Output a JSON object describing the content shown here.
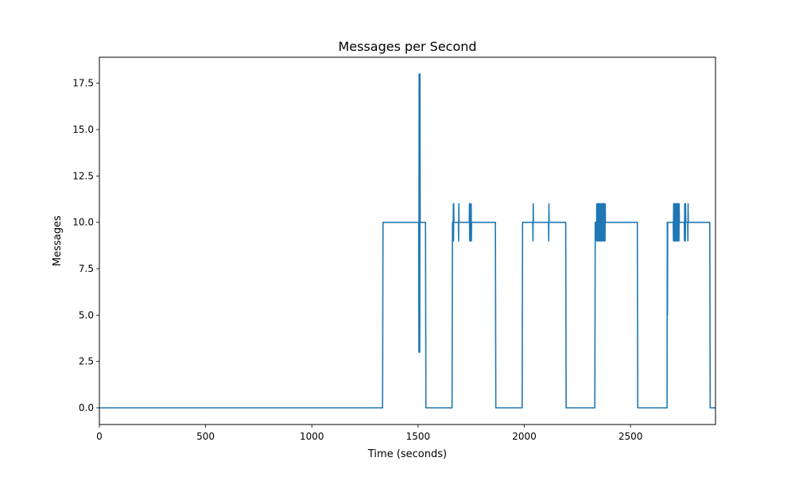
{
  "chart_data": {
    "type": "line",
    "title": "Messages per Second",
    "xlabel": "Time (seconds)",
    "ylabel": "Messages",
    "xlim": [
      0,
      2900
    ],
    "ylim": [
      -0.9,
      18.9
    ],
    "xticks": [
      0,
      500,
      1000,
      1500,
      2000,
      2500
    ],
    "xtick_labels": [
      "0",
      "500",
      "1000",
      "1500",
      "2000",
      "2500"
    ],
    "yticks": [
      0,
      2.5,
      5,
      7.5,
      10,
      12.5,
      15,
      17.5
    ],
    "ytick_labels": [
      "0.0",
      "2.5",
      "5.0",
      "7.5",
      "10.0",
      "12.5",
      "15.0",
      "17.5"
    ],
    "grid": false,
    "legend": "none",
    "series": [
      {
        "color": "#1f77b4",
        "x": [
          0,
          1333,
          1335,
          1503,
          1504,
          1505,
          1506,
          1507,
          1508,
          1509,
          1510,
          1512,
          1535,
          1537,
          1660,
          1662,
          1664,
          1665,
          1666,
          1667,
          1668,
          1669,
          1690,
          1691,
          1692,
          1693,
          1741,
          1742,
          1743,
          1744,
          1745,
          1746,
          1747,
          1748,
          1749,
          1750,
          1751,
          1752,
          1864,
          1866,
          1990,
          1992,
          2040,
          2041,
          2042,
          2043,
          2114,
          2115,
          2116,
          2117,
          2195,
          2197,
          2332,
          2334,
          2339,
          2340,
          2341,
          2342,
          2343,
          2344,
          2345,
          2346,
          2347,
          2348,
          2349,
          2350,
          2351,
          2352,
          2353,
          2354,
          2355,
          2356,
          2357,
          2358,
          2359,
          2360,
          2361,
          2362,
          2363,
          2364,
          2365,
          2366,
          2367,
          2368,
          2369,
          2370,
          2371,
          2372,
          2373,
          2374,
          2375,
          2376,
          2377,
          2378,
          2379,
          2380,
          2381,
          2382,
          2532,
          2534,
          2672,
          2673,
          2674,
          2675,
          2676,
          2678,
          2701,
          2702,
          2703,
          2704,
          2705,
          2706,
          2707,
          2708,
          2709,
          2710,
          2711,
          2712,
          2713,
          2714,
          2715,
          2716,
          2717,
          2718,
          2719,
          2720,
          2721,
          2722,
          2723,
          2724,
          2725,
          2726,
          2727,
          2728,
          2729,
          2730,
          2753,
          2754,
          2755,
          2756,
          2757,
          2758,
          2759,
          2760,
          2769,
          2770,
          2771,
          2772,
          2873,
          2875,
          2900
        ],
        "y": [
          0,
          0,
          10,
          10,
          3,
          18,
          3,
          18,
          3,
          18,
          10,
          10,
          10,
          0,
          0,
          10,
          10,
          9,
          11,
          9,
          11,
          10,
          10,
          9,
          11,
          10,
          10,
          11,
          9,
          11,
          9,
          11,
          9,
          11,
          9,
          11,
          9,
          10,
          10,
          0,
          0,
          10,
          10,
          9,
          11,
          10,
          10,
          9,
          11,
          10,
          10,
          0,
          0,
          10,
          10,
          9,
          11,
          9,
          11,
          9,
          11,
          9,
          11,
          9,
          11,
          9,
          11,
          9,
          11,
          9,
          11,
          9,
          11,
          9,
          11,
          9,
          11,
          9,
          11,
          9,
          11,
          9,
          11,
          9,
          11,
          9,
          11,
          9,
          11,
          9,
          11,
          9,
          11,
          9,
          11,
          9,
          11,
          10,
          10,
          0,
          0,
          10,
          5,
          10,
          10,
          10,
          10,
          9,
          11,
          9,
          11,
          9,
          11,
          9,
          11,
          9,
          11,
          9,
          11,
          9,
          11,
          9,
          11,
          9,
          11,
          9,
          11,
          9,
          11,
          9,
          11,
          9,
          11,
          9,
          11,
          10,
          10,
          9,
          11,
          9,
          11,
          9,
          11,
          10,
          10,
          9,
          11,
          10,
          10,
          0,
          0
        ]
      }
    ]
  }
}
